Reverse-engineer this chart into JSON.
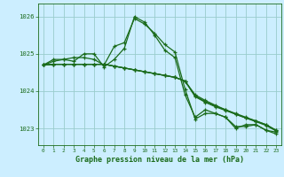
{
  "title": "Graphe pression niveau de la mer (hPa)",
  "bg_color": "#cceeff",
  "grid_color": "#99cccc",
  "line_color": "#1a6b1a",
  "xlim": [
    -0.5,
    23.5
  ],
  "ylim": [
    1022.55,
    1026.35
  ],
  "yticks": [
    1023,
    1024,
    1025,
    1026
  ],
  "xticks": [
    0,
    1,
    2,
    3,
    4,
    5,
    6,
    7,
    8,
    9,
    10,
    11,
    12,
    13,
    14,
    15,
    16,
    17,
    18,
    19,
    20,
    21,
    22,
    23
  ],
  "series": [
    [
      1024.7,
      1024.8,
      1024.85,
      1024.9,
      1024.9,
      1024.85,
      1024.7,
      1025.2,
      1025.3,
      1025.95,
      1025.8,
      1025.55,
      1025.25,
      1025.05,
      1024.05,
      1023.25,
      1023.4,
      1023.4,
      1023.3,
      1023.0,
      1023.1,
      1023.1,
      1022.95,
      1022.9
    ],
    [
      1024.7,
      1024.85,
      1024.85,
      1024.8,
      1025.0,
      1025.0,
      1024.65,
      1024.85,
      1025.15,
      1026.0,
      1025.85,
      1025.5,
      1025.1,
      1024.9,
      1023.9,
      1023.3,
      1023.5,
      1023.4,
      1023.3,
      1023.05,
      1023.05,
      1023.1,
      1022.95,
      1022.85
    ],
    [
      1024.7,
      1024.72,
      1024.72,
      1024.72,
      1024.72,
      1024.72,
      1024.72,
      1024.67,
      1024.62,
      1024.57,
      1024.52,
      1024.47,
      1024.42,
      1024.37,
      1024.27,
      1023.9,
      1023.75,
      1023.62,
      1023.5,
      1023.38,
      1023.28,
      1023.2,
      1023.1,
      1022.95
    ],
    [
      1024.7,
      1024.72,
      1024.72,
      1024.72,
      1024.72,
      1024.72,
      1024.72,
      1024.67,
      1024.62,
      1024.57,
      1024.52,
      1024.47,
      1024.42,
      1024.37,
      1024.27,
      1023.87,
      1023.72,
      1023.6,
      1023.5,
      1023.4,
      1023.3,
      1023.2,
      1023.1,
      1022.95
    ],
    [
      1024.7,
      1024.72,
      1024.72,
      1024.72,
      1024.72,
      1024.72,
      1024.72,
      1024.67,
      1024.62,
      1024.57,
      1024.52,
      1024.47,
      1024.42,
      1024.37,
      1024.27,
      1023.85,
      1023.7,
      1023.58,
      1023.48,
      1023.38,
      1023.28,
      1023.18,
      1023.08,
      1022.93
    ]
  ]
}
